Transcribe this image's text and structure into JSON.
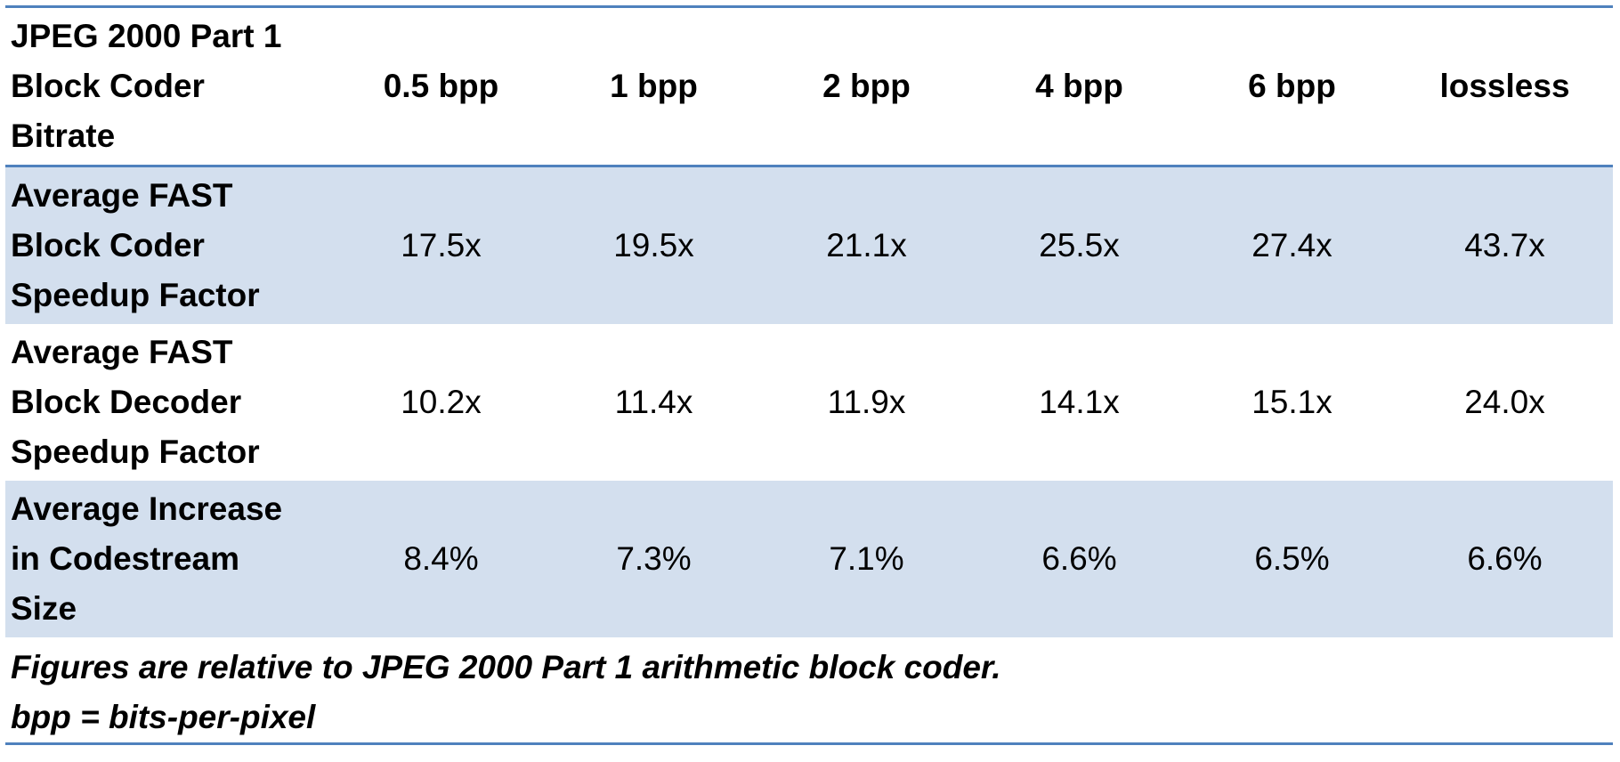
{
  "table": {
    "header": {
      "label_lines": [
        "JPEG 2000 Part 1",
        "Block Coder",
        "Bitrate"
      ],
      "columns": [
        "0.5 bpp",
        "1 bpp",
        "2 bpp",
        "4 bpp",
        "6 bpp",
        "lossless"
      ]
    },
    "rows": [
      {
        "label_lines": [
          "Average FAST",
          "Block Coder",
          "Speedup Factor"
        ],
        "values": [
          "17.5x",
          "19.5x",
          "21.1x",
          "25.5x",
          "27.4x",
          "43.7x"
        ]
      },
      {
        "label_lines": [
          "Average FAST",
          "Block Decoder",
          "Speedup Factor"
        ],
        "values": [
          "10.2x",
          "11.4x",
          "11.9x",
          "14.1x",
          "15.1x",
          "24.0x"
        ]
      },
      {
        "label_lines": [
          "Average Increase",
          "in Codestream",
          "Size"
        ],
        "values": [
          "8.4%",
          "7.3%",
          "7.1%",
          "6.6%",
          "6.5%",
          "6.6%"
        ]
      }
    ],
    "notes": [
      "Figures are relative to JPEG 2000 Part 1 arithmetic block coder.",
      "bpp = bits-per-pixel"
    ],
    "colors": {
      "rule": "#4f81bd",
      "shaded_row": "#d3dfee"
    }
  }
}
